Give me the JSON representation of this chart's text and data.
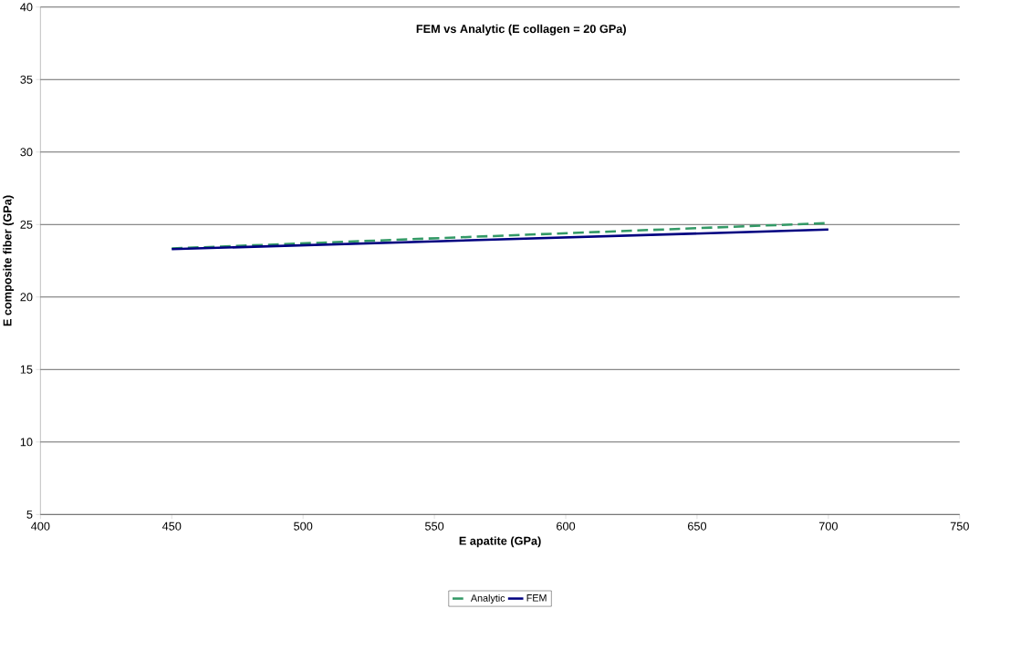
{
  "chart_data": {
    "type": "line",
    "title": "FEM vs Analytic (E collagen = 20 GPa)",
    "xlabel": "E apatite (GPa)",
    "ylabel": "E composite fiber (GPa)",
    "x": [
      450,
      700
    ],
    "series": [
      {
        "name": "Analytic",
        "color": "#339966",
        "line_style": "dashed",
        "values": [
          23.35,
          25.1
        ]
      },
      {
        "name": "FEM",
        "color": "#000080",
        "line_style": "solid",
        "values": [
          23.3,
          24.65
        ]
      }
    ],
    "xlim": [
      400,
      750
    ],
    "ylim": [
      5,
      40
    ],
    "xticks": [
      400,
      450,
      500,
      550,
      600,
      650,
      700,
      750
    ],
    "yticks": [
      5,
      10,
      15,
      20,
      25,
      30,
      35,
      40
    ],
    "grid": "y",
    "legend": "bottom"
  }
}
